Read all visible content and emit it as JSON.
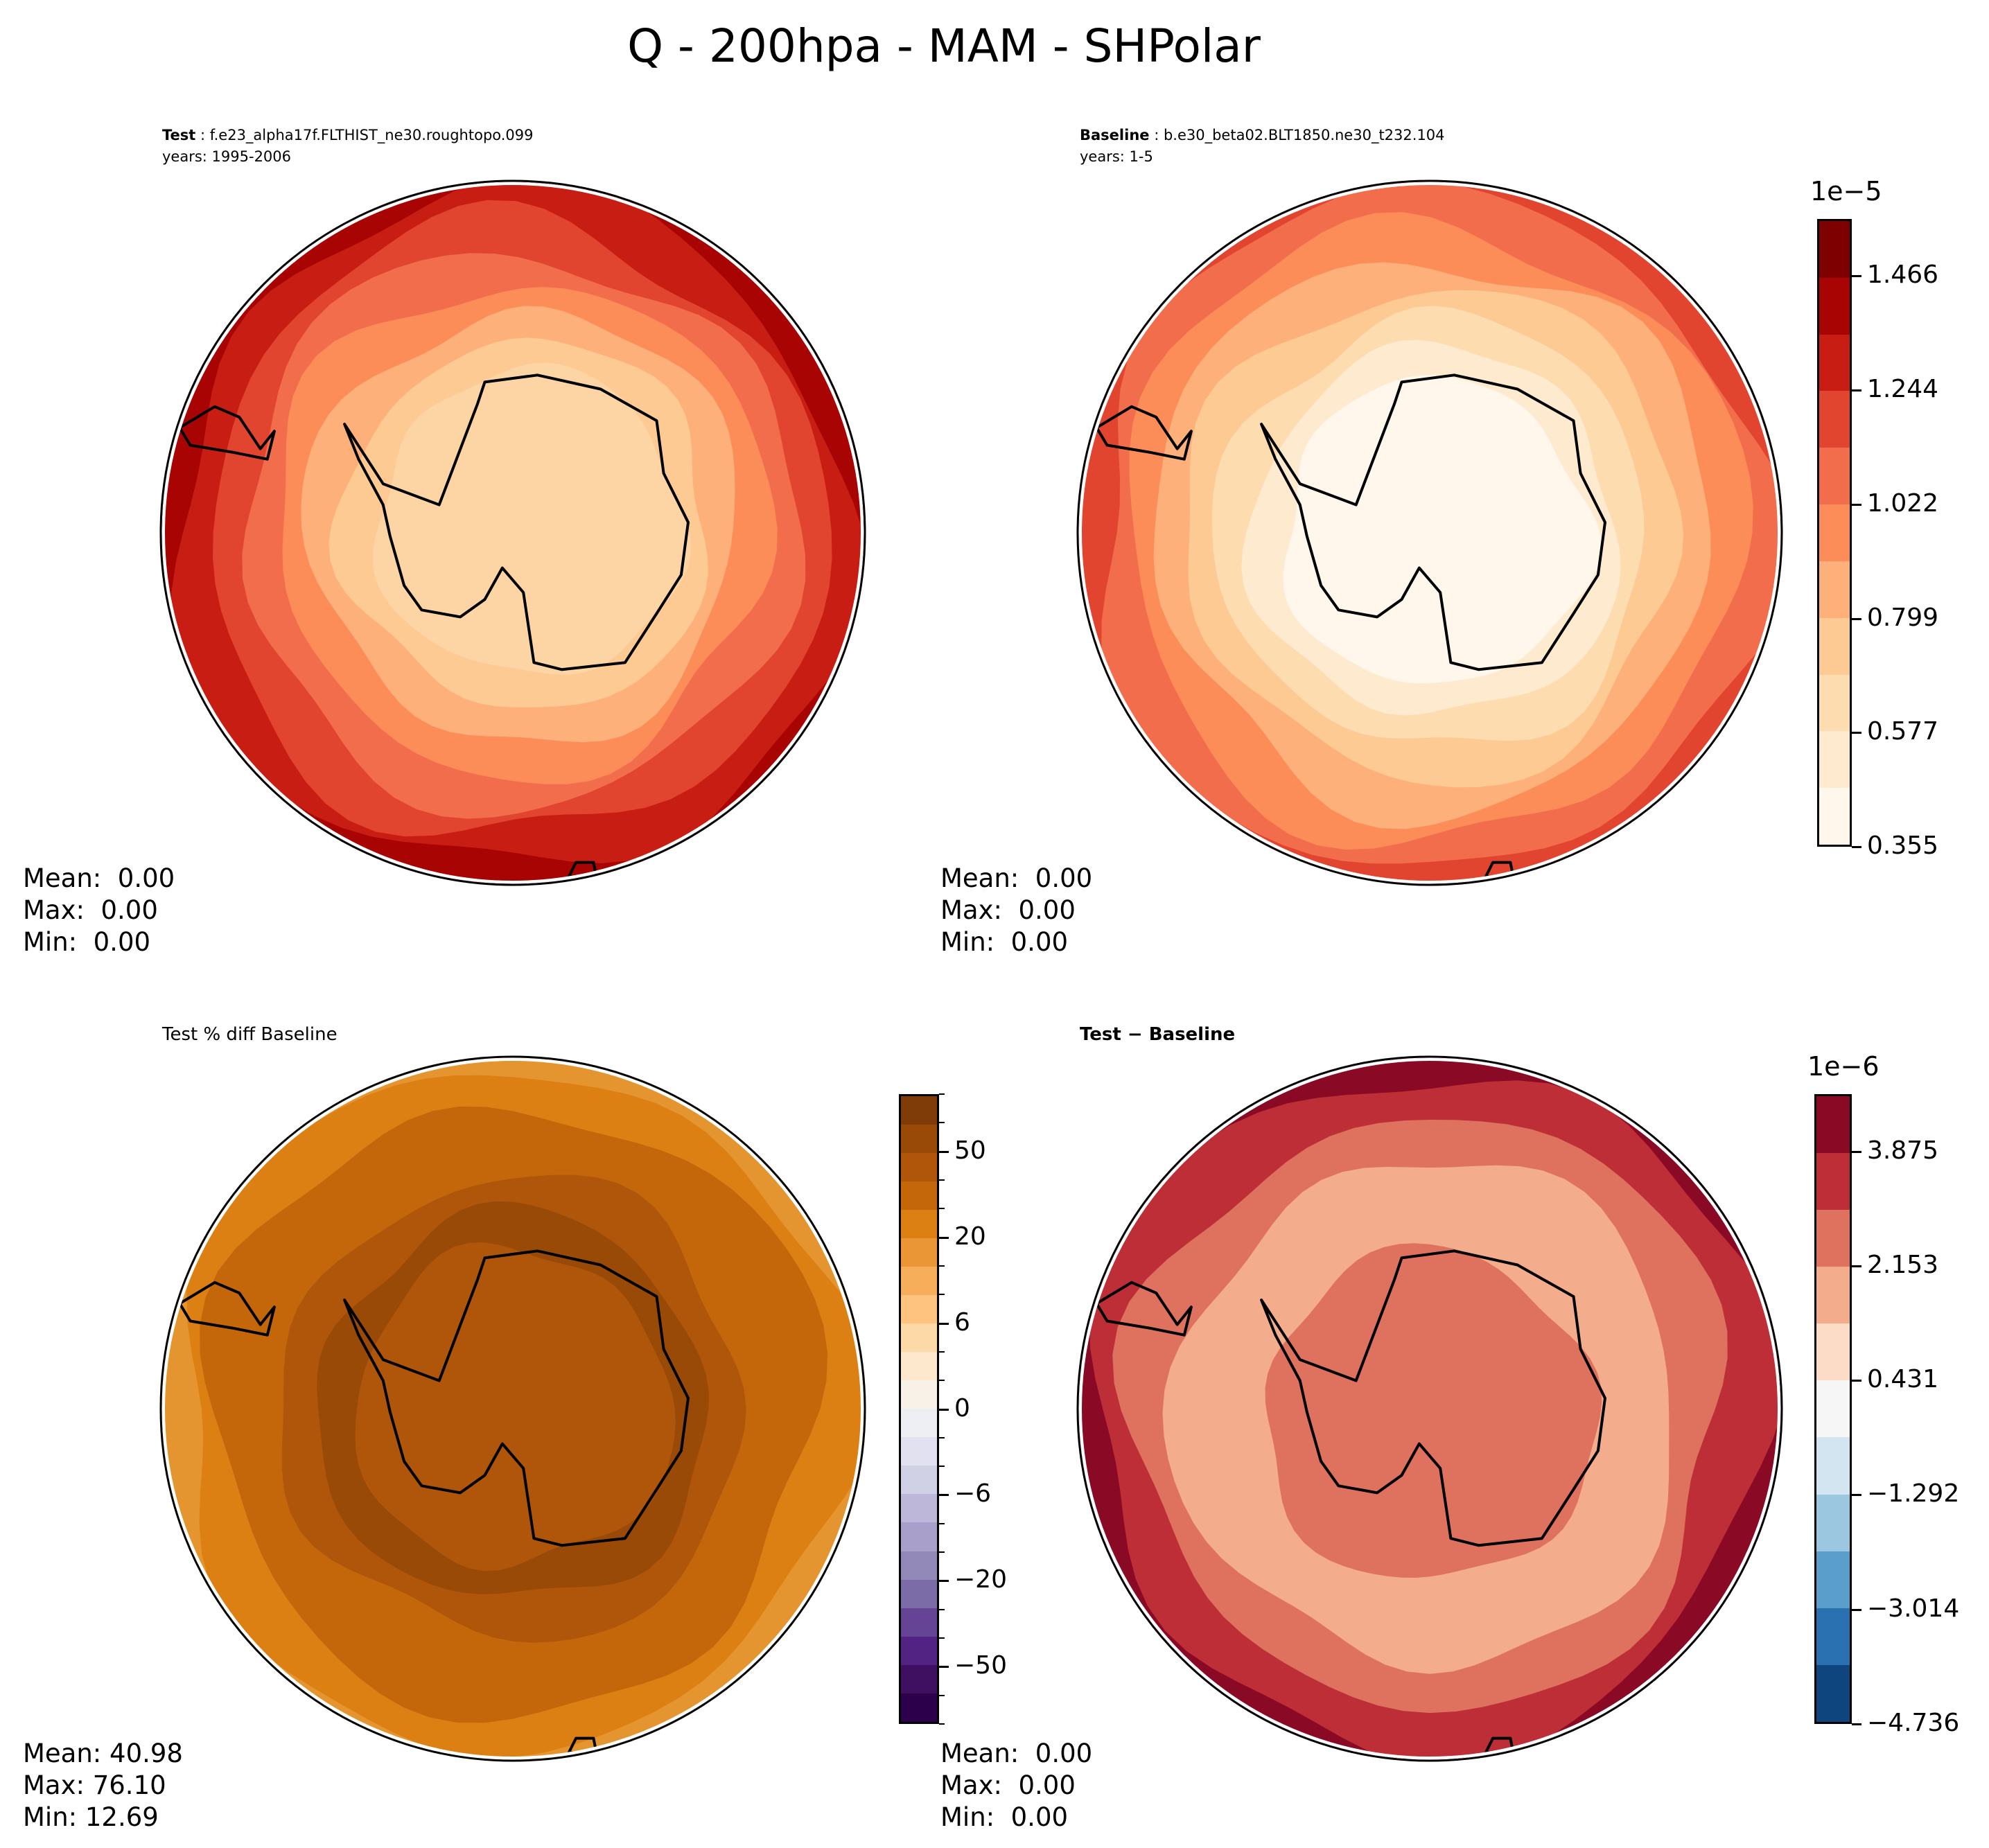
{
  "title": "Q - 200hpa - MAM - SHPolar",
  "panels": [
    {
      "id": "test",
      "label_bold": "Test",
      "label_rest": " : f.e23_alpha17f.FLTHIST_ne30.roughtopo.099",
      "years": "years: 1995-2006",
      "stats": {
        "mean": "Mean:  0.00",
        "max": "Max:  0.00",
        "min": "Min:  0.00"
      },
      "field_colors": [
        "#c81d13",
        "#e1452f",
        "#f26d4b",
        "#fc8d59",
        "#fdb07a",
        "#fdca94",
        "#fdd5a5"
      ],
      "edge_color": "#a70403"
    },
    {
      "id": "baseline",
      "label_bold": "Baseline",
      "label_rest": " : b.e30_beta02.BLT1850.ne30_t232.104",
      "years": "years: 1-5",
      "stats": {
        "mean": "Mean:  0.00",
        "max": "Max:  0.00",
        "min": "Min:  0.00"
      },
      "field_colors": [
        "#f26d4b",
        "#fc8d59",
        "#fdb07a",
        "#fdca94",
        "#fddcaf",
        "#feebcf",
        "#fff7ec"
      ],
      "edge_color": "#e1452f"
    },
    {
      "id": "pctdiff",
      "title": "Test % diff Baseline",
      "stats": {
        "mean": "Mean: 40.98",
        "max": "Max: 76.10",
        "min": "Min: 12.69"
      },
      "field_colors": [
        "#dc8014",
        "#c4670b",
        "#c4670b",
        "#b0560a",
        "#9a4a07",
        "#b0560a"
      ],
      "edge_color": "#e59530"
    },
    {
      "id": "diff",
      "title": "Test − Baseline",
      "stats": {
        "mean": "Mean:  0.00",
        "max": "Max:  0.00",
        "min": "Min:  0.00"
      },
      "field_colors": [
        "#bd2e36",
        "#de725e",
        "#f4ad8c",
        "#f4ad8c",
        "#de725e"
      ],
      "edge_color": "#8a0a26"
    }
  ],
  "chart_data": [
    {
      "type": "heatmap",
      "panel": "Test / Baseline colorbar",
      "colorbar": {
        "exponent_label": "1e−5",
        "levels": [
          0.355,
          0.466,
          0.577,
          0.688,
          0.799,
          0.911,
          1.022,
          1.133,
          1.244,
          1.355,
          1.466,
          1.577
        ],
        "ticks": [
          "0.355",
          "0.577",
          "0.799",
          "1.022",
          "1.244",
          "1.466"
        ],
        "colors": [
          "#fff7ec",
          "#feebcf",
          "#fddcaf",
          "#fdca94",
          "#fdb07a",
          "#fc8d59",
          "#f26d4b",
          "#e1452f",
          "#c81d13",
          "#a70403",
          "#7f0000"
        ]
      }
    },
    {
      "type": "heatmap",
      "panel": "Test % diff Baseline colorbar",
      "colorbar": {
        "levels": [
          -75,
          -60,
          -50,
          -40,
          -30,
          -20,
          -15,
          -10,
          -6,
          -4,
          -2,
          0,
          2,
          4,
          6,
          10,
          15,
          20,
          30,
          40,
          50,
          60,
          75
        ],
        "ticks": [
          "50",
          "20",
          "6",
          "0",
          "−6",
          "−20",
          "−50"
        ],
        "tick_values": [
          50,
          20,
          6,
          0,
          -6,
          -20,
          -50
        ],
        "colors": [
          "#2d004b",
          "#3f0f62",
          "#522382",
          "#654496",
          "#7b6ba7",
          "#9289b9",
          "#a89fca",
          "#bdb7da",
          "#d1d1e6",
          "#e1e1ef",
          "#eeeff3",
          "#f7f1e8",
          "#fde8cd",
          "#fed9a8",
          "#fdc37f",
          "#f6ae5a",
          "#eb9636",
          "#dc8014",
          "#c4670b",
          "#b0560a",
          "#9a4a07",
          "#7f3b08"
        ]
      }
    },
    {
      "type": "heatmap",
      "panel": "Test - Baseline colorbar",
      "colorbar": {
        "exponent_label": "1e−6",
        "levels": [
          -4.736,
          -3.875,
          -3.014,
          -2.153,
          -1.292,
          -0.431,
          0.431,
          1.292,
          2.153,
          3.014,
          3.875,
          4.736
        ],
        "ticks": [
          "−4.736",
          "−3.014",
          "−1.292",
          "0.431",
          "2.153",
          "3.875"
        ],
        "colors": [
          "#0f457e",
          "#2a71b2",
          "#5a9ecc",
          "#9bc8e0",
          "#d2e5f0",
          "#f6f6f6",
          "#fcdbc7",
          "#f4ad8c",
          "#de725e",
          "#bd2e36",
          "#8a0a26"
        ]
      }
    }
  ]
}
